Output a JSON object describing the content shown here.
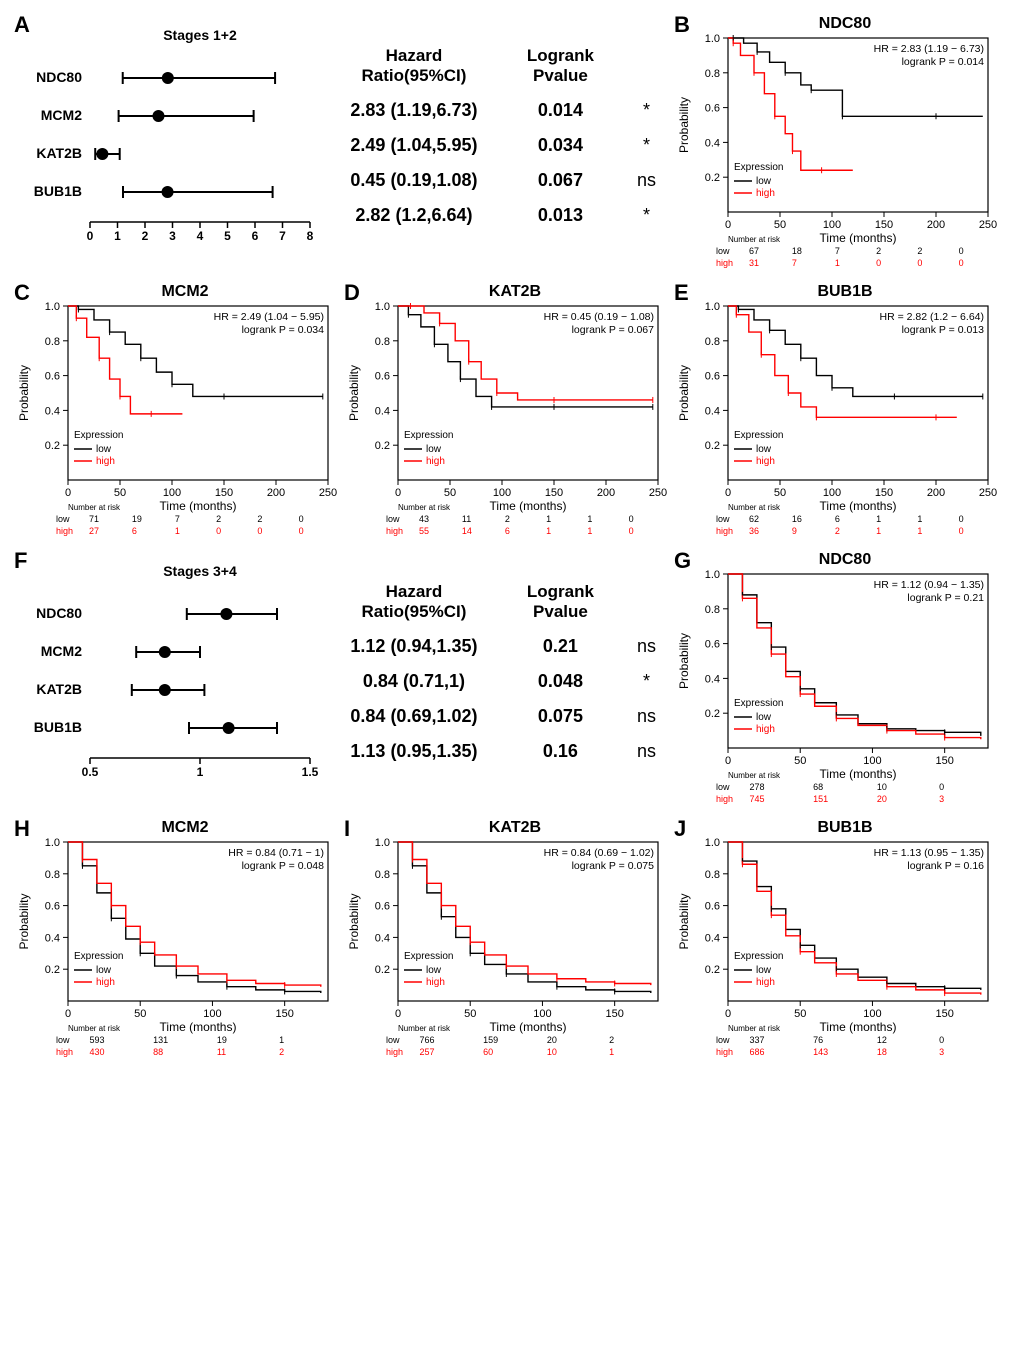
{
  "colors": {
    "low": "#000000",
    "high": "#ff0000",
    "axis": "#000000",
    "bg": "#ffffff"
  },
  "forestA": {
    "label": "A",
    "title": "Stages 1+2",
    "xaxis": {
      "min": 0,
      "max": 8,
      "ticks": [
        0,
        1,
        2,
        3,
        4,
        5,
        6,
        7,
        8
      ]
    },
    "rows": [
      {
        "gene": "NDC80",
        "pt": 2.83,
        "lo": 1.19,
        "hi": 6.73,
        "hrtext": "2.83 (1.19,6.73)",
        "p": "0.014",
        "sig": "*"
      },
      {
        "gene": "MCM2",
        "pt": 2.49,
        "lo": 1.04,
        "hi": 5.95,
        "hrtext": "2.49 (1.04,5.95)",
        "p": "0.034",
        "sig": "*"
      },
      {
        "gene": "KAT2B",
        "pt": 0.45,
        "lo": 0.19,
        "hi": 1.08,
        "hrtext": "0.45 (0.19,1.08)",
        "p": "0.067",
        "sig": "ns"
      },
      {
        "gene": "BUB1B",
        "pt": 2.82,
        "lo": 1.2,
        "hi": 6.64,
        "hrtext": "2.82 (1.2,6.64)",
        "p": "0.013",
        "sig": "*"
      }
    ],
    "hr_header": "Hazard Ratio(95%CI)",
    "p_header": "Logrank Pvalue"
  },
  "forestF": {
    "label": "F",
    "title": "Stages 3+4",
    "xaxis": {
      "min": 0.5,
      "max": 1.5,
      "ticks": [
        0.5,
        1.0,
        1.5
      ]
    },
    "rows": [
      {
        "gene": "NDC80",
        "pt": 1.12,
        "lo": 0.94,
        "hi": 1.35,
        "hrtext": "1.12 (0.94,1.35)",
        "p": "0.21",
        "sig": "ns"
      },
      {
        "gene": "MCM2",
        "pt": 0.84,
        "lo": 0.71,
        "hi": 1.0,
        "hrtext": "0.84 (0.71,1)",
        "p": "0.048",
        "sig": "*"
      },
      {
        "gene": "KAT2B",
        "pt": 0.84,
        "lo": 0.69,
        "hi": 1.02,
        "hrtext": "0.84 (0.69,1.02)",
        "p": "0.075",
        "sig": "ns"
      },
      {
        "gene": "BUB1B",
        "pt": 1.13,
        "lo": 0.95,
        "hi": 1.35,
        "hrtext": "1.13 (0.95,1.35)",
        "p": "0.16",
        "sig": "ns"
      }
    ],
    "hr_header": "Hazard Ratio(95%CI)",
    "p_header": "Logrank Pvalue"
  },
  "km_common": {
    "ylabel": "Probability",
    "xlabel": "Time (months)",
    "legend_title": "Expression",
    "legend_low": "low",
    "legend_high": "high",
    "yticks": [
      0.2,
      0.4,
      0.6,
      0.8,
      1.0
    ],
    "risk_title": "Number at risk"
  },
  "kmB": {
    "label": "B",
    "title": "NDC80",
    "hr": "HR = 2.83 (1.19 − 6.73)",
    "p": "logrank P = 0.014",
    "xmax": 250,
    "xticks": [
      0,
      50,
      100,
      150,
      200,
      250
    ],
    "low": [
      [
        0,
        1.0
      ],
      [
        5,
        1.0
      ],
      [
        15,
        0.97
      ],
      [
        28,
        0.92
      ],
      [
        40,
        0.86
      ],
      [
        55,
        0.8
      ],
      [
        70,
        0.73
      ],
      [
        80,
        0.7
      ],
      [
        95,
        0.7
      ],
      [
        110,
        0.55
      ],
      [
        150,
        0.55
      ],
      [
        200,
        0.55
      ],
      [
        245,
        0.55
      ]
    ],
    "high": [
      [
        0,
        1.0
      ],
      [
        5,
        0.97
      ],
      [
        12,
        0.9
      ],
      [
        25,
        0.8
      ],
      [
        35,
        0.68
      ],
      [
        45,
        0.55
      ],
      [
        55,
        0.45
      ],
      [
        62,
        0.35
      ],
      [
        70,
        0.24
      ],
      [
        90,
        0.24
      ],
      [
        120,
        0.24
      ]
    ],
    "risk_low": [
      "low",
      "67",
      "18",
      "7",
      "2",
      "2",
      "0"
    ],
    "risk_high": [
      "high",
      "31",
      "7",
      "1",
      "0",
      "0",
      "0"
    ]
  },
  "kmC": {
    "label": "C",
    "title": "MCM2",
    "hr": "HR = 2.49 (1.04 − 5.95)",
    "p": "logrank P = 0.034",
    "xmax": 250,
    "xticks": [
      0,
      50,
      100,
      150,
      200,
      250
    ],
    "low": [
      [
        0,
        1.0
      ],
      [
        10,
        0.98
      ],
      [
        25,
        0.92
      ],
      [
        40,
        0.85
      ],
      [
        55,
        0.78
      ],
      [
        70,
        0.7
      ],
      [
        85,
        0.62
      ],
      [
        100,
        0.55
      ],
      [
        120,
        0.48
      ],
      [
        150,
        0.48
      ],
      [
        200,
        0.48
      ],
      [
        245,
        0.48
      ]
    ],
    "high": [
      [
        0,
        1.0
      ],
      [
        8,
        0.93
      ],
      [
        18,
        0.82
      ],
      [
        30,
        0.7
      ],
      [
        40,
        0.58
      ],
      [
        50,
        0.48
      ],
      [
        60,
        0.38
      ],
      [
        80,
        0.38
      ],
      [
        110,
        0.38
      ]
    ],
    "risk_low": [
      "low",
      "71",
      "19",
      "7",
      "2",
      "2",
      "0"
    ],
    "risk_high": [
      "high",
      "27",
      "6",
      "1",
      "0",
      "0",
      "0"
    ]
  },
  "kmD": {
    "label": "D",
    "title": "KAT2B",
    "hr": "HR = 0.45 (0.19 − 1.08)",
    "p": "logrank P = 0.067",
    "xmax": 250,
    "xticks": [
      0,
      50,
      100,
      150,
      200,
      250
    ],
    "low": [
      [
        0,
        1.0
      ],
      [
        10,
        0.95
      ],
      [
        22,
        0.88
      ],
      [
        35,
        0.78
      ],
      [
        48,
        0.68
      ],
      [
        60,
        0.58
      ],
      [
        75,
        0.48
      ],
      [
        90,
        0.42
      ],
      [
        110,
        0.42
      ],
      [
        150,
        0.42
      ],
      [
        200,
        0.42
      ],
      [
        245,
        0.42
      ]
    ],
    "high": [
      [
        0,
        1.0
      ],
      [
        12,
        1.0
      ],
      [
        25,
        0.96
      ],
      [
        40,
        0.9
      ],
      [
        55,
        0.8
      ],
      [
        68,
        0.68
      ],
      [
        80,
        0.58
      ],
      [
        95,
        0.5
      ],
      [
        115,
        0.46
      ],
      [
        150,
        0.46
      ],
      [
        200,
        0.46
      ],
      [
        245,
        0.46
      ]
    ],
    "risk_low": [
      "low",
      "43",
      "11",
      "2",
      "1",
      "1",
      "0"
    ],
    "risk_high": [
      "high",
      "55",
      "14",
      "6",
      "1",
      "1",
      "0"
    ]
  },
  "kmE": {
    "label": "E",
    "title": "BUB1B",
    "hr": "HR = 2.82 (1.2 − 6.64)",
    "p": "logrank P = 0.013",
    "xmax": 250,
    "xticks": [
      0,
      50,
      100,
      150,
      200,
      250
    ],
    "low": [
      [
        0,
        1.0
      ],
      [
        10,
        0.98
      ],
      [
        25,
        0.92
      ],
      [
        40,
        0.86
      ],
      [
        55,
        0.78
      ],
      [
        70,
        0.7
      ],
      [
        85,
        0.6
      ],
      [
        100,
        0.53
      ],
      [
        120,
        0.48
      ],
      [
        160,
        0.48
      ],
      [
        200,
        0.48
      ],
      [
        245,
        0.48
      ]
    ],
    "high": [
      [
        0,
        1.0
      ],
      [
        8,
        0.95
      ],
      [
        20,
        0.85
      ],
      [
        32,
        0.72
      ],
      [
        45,
        0.6
      ],
      [
        58,
        0.5
      ],
      [
        70,
        0.42
      ],
      [
        85,
        0.36
      ],
      [
        120,
        0.36
      ],
      [
        200,
        0.36
      ],
      [
        220,
        0.36
      ]
    ],
    "risk_low": [
      "low",
      "62",
      "16",
      "6",
      "1",
      "1",
      "0"
    ],
    "risk_high": [
      "high",
      "36",
      "9",
      "2",
      "1",
      "1",
      "0"
    ]
  },
  "kmG": {
    "label": "G",
    "title": "NDC80",
    "hr": "HR = 1.12 (0.94 − 1.35)",
    "p": "logrank P = 0.21",
    "xmax": 180,
    "xticks": [
      0,
      50,
      100,
      150
    ],
    "low": [
      [
        0,
        1.0
      ],
      [
        10,
        0.88
      ],
      [
        20,
        0.72
      ],
      [
        30,
        0.58
      ],
      [
        40,
        0.44
      ],
      [
        50,
        0.34
      ],
      [
        60,
        0.26
      ],
      [
        75,
        0.19
      ],
      [
        90,
        0.14
      ],
      [
        110,
        0.11
      ],
      [
        130,
        0.1
      ],
      [
        150,
        0.09
      ],
      [
        175,
        0.07
      ]
    ],
    "high": [
      [
        0,
        1.0
      ],
      [
        10,
        0.86
      ],
      [
        20,
        0.69
      ],
      [
        30,
        0.54
      ],
      [
        40,
        0.41
      ],
      [
        50,
        0.31
      ],
      [
        60,
        0.24
      ],
      [
        75,
        0.17
      ],
      [
        90,
        0.13
      ],
      [
        110,
        0.1
      ],
      [
        130,
        0.08
      ],
      [
        150,
        0.06
      ],
      [
        175,
        0.05
      ]
    ],
    "risk_low": [
      "low",
      "278",
      "68",
      "10",
      "0"
    ],
    "risk_high": [
      "high",
      "745",
      "151",
      "20",
      "3"
    ]
  },
  "kmH": {
    "label": "H",
    "title": "MCM2",
    "hr": "HR = 0.84 (0.71 − 1)",
    "p": "logrank P = 0.048",
    "xmax": 180,
    "xticks": [
      0,
      50,
      100,
      150
    ],
    "low": [
      [
        0,
        1.0
      ],
      [
        10,
        0.85
      ],
      [
        20,
        0.68
      ],
      [
        30,
        0.52
      ],
      [
        40,
        0.39
      ],
      [
        50,
        0.3
      ],
      [
        60,
        0.22
      ],
      [
        75,
        0.16
      ],
      [
        90,
        0.12
      ],
      [
        110,
        0.09
      ],
      [
        130,
        0.07
      ],
      [
        150,
        0.06
      ],
      [
        175,
        0.05
      ]
    ],
    "high": [
      [
        0,
        1.0
      ],
      [
        10,
        0.89
      ],
      [
        20,
        0.74
      ],
      [
        30,
        0.6
      ],
      [
        40,
        0.47
      ],
      [
        50,
        0.37
      ],
      [
        60,
        0.29
      ],
      [
        75,
        0.22
      ],
      [
        90,
        0.17
      ],
      [
        110,
        0.13
      ],
      [
        130,
        0.11
      ],
      [
        150,
        0.1
      ],
      [
        175,
        0.09
      ]
    ],
    "risk_low": [
      "low",
      "593",
      "131",
      "19",
      "1"
    ],
    "risk_high": [
      "high",
      "430",
      "88",
      "11",
      "2"
    ]
  },
  "kmI": {
    "label": "I",
    "title": "KAT2B",
    "hr": "HR = 0.84 (0.69 − 1.02)",
    "p": "logrank P = 0.075",
    "xmax": 180,
    "xticks": [
      0,
      50,
      100,
      150
    ],
    "low": [
      [
        0,
        1.0
      ],
      [
        10,
        0.85
      ],
      [
        20,
        0.68
      ],
      [
        30,
        0.53
      ],
      [
        40,
        0.4
      ],
      [
        50,
        0.3
      ],
      [
        60,
        0.23
      ],
      [
        75,
        0.17
      ],
      [
        90,
        0.12
      ],
      [
        110,
        0.09
      ],
      [
        130,
        0.07
      ],
      [
        150,
        0.06
      ],
      [
        175,
        0.05
      ]
    ],
    "high": [
      [
        0,
        1.0
      ],
      [
        10,
        0.89
      ],
      [
        20,
        0.74
      ],
      [
        30,
        0.6
      ],
      [
        40,
        0.47
      ],
      [
        50,
        0.37
      ],
      [
        60,
        0.29
      ],
      [
        75,
        0.22
      ],
      [
        90,
        0.17
      ],
      [
        110,
        0.14
      ],
      [
        130,
        0.12
      ],
      [
        150,
        0.11
      ],
      [
        175,
        0.1
      ]
    ],
    "risk_low": [
      "low",
      "766",
      "159",
      "20",
      "2"
    ],
    "risk_high": [
      "high",
      "257",
      "60",
      "10",
      "1"
    ]
  },
  "kmJ": {
    "label": "J",
    "title": "BUB1B",
    "hr": "HR = 1.13 (0.95 − 1.35)",
    "p": "logrank P = 0.16",
    "xmax": 180,
    "xticks": [
      0,
      50,
      100,
      150
    ],
    "low": [
      [
        0,
        1.0
      ],
      [
        10,
        0.88
      ],
      [
        20,
        0.72
      ],
      [
        30,
        0.58
      ],
      [
        40,
        0.45
      ],
      [
        50,
        0.35
      ],
      [
        60,
        0.27
      ],
      [
        75,
        0.2
      ],
      [
        90,
        0.15
      ],
      [
        110,
        0.11
      ],
      [
        130,
        0.09
      ],
      [
        150,
        0.08
      ],
      [
        175,
        0.07
      ]
    ],
    "high": [
      [
        0,
        1.0
      ],
      [
        10,
        0.86
      ],
      [
        20,
        0.69
      ],
      [
        30,
        0.54
      ],
      [
        40,
        0.41
      ],
      [
        50,
        0.31
      ],
      [
        60,
        0.24
      ],
      [
        75,
        0.17
      ],
      [
        90,
        0.13
      ],
      [
        110,
        0.09
      ],
      [
        130,
        0.07
      ],
      [
        150,
        0.05
      ],
      [
        175,
        0.04
      ]
    ],
    "risk_low": [
      "low",
      "337",
      "76",
      "12",
      "0"
    ],
    "risk_high": [
      "high",
      "686",
      "143",
      "18",
      "3"
    ]
  }
}
